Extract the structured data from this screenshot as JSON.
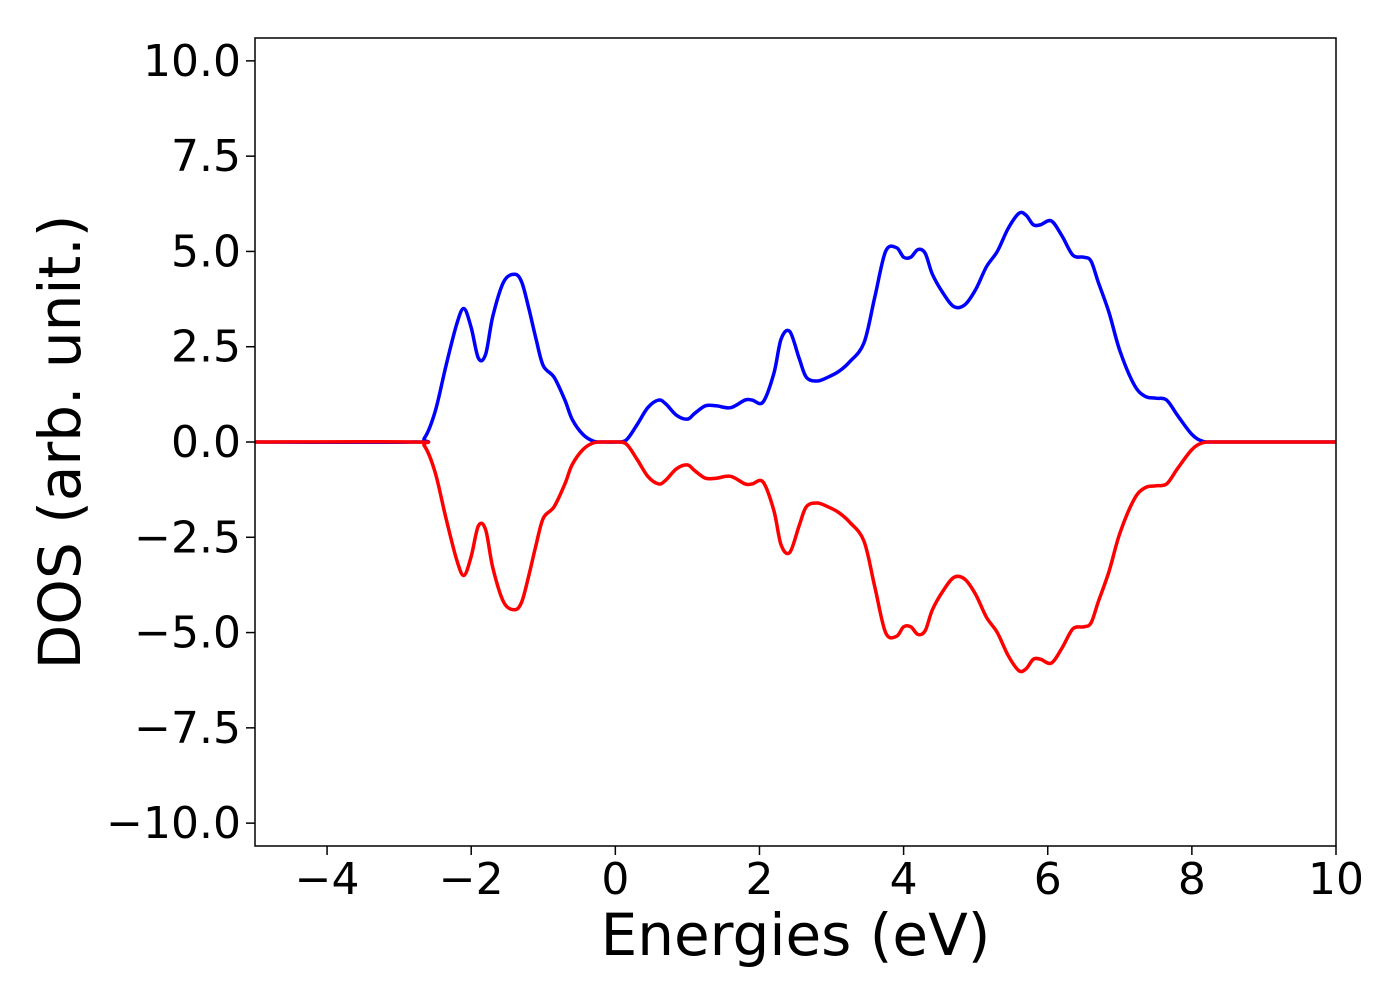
{
  "chart_data": {
    "type": "line",
    "title": "",
    "xlabel": "Energies (eV)",
    "ylabel": "DOS (arb. unit.)",
    "xlim": [
      -5,
      10
    ],
    "ylim": [
      -10.6,
      10.6
    ],
    "xticks": [
      -4,
      -2,
      0,
      2,
      4,
      6,
      8,
      10
    ],
    "xtick_labels": [
      "−4",
      "−2",
      "0",
      "2",
      "4",
      "6",
      "8",
      "10"
    ],
    "yticks": [
      10,
      7.5,
      5,
      2.5,
      0,
      -2.5,
      -5,
      -7.5,
      -10
    ],
    "ytick_labels": [
      "10.0",
      "7.5",
      "5.0",
      "2.5",
      "0.0",
      "−2.5",
      "−5.0",
      "−7.5",
      "−10.0"
    ],
    "grid": false,
    "legend": "none",
    "series": [
      {
        "color": "#0000ff",
        "x": [
          -5.0,
          -2.8,
          -2.65,
          -2.5,
          -2.35,
          -2.2,
          -2.1,
          -2.0,
          -1.9,
          -1.8,
          -1.7,
          -1.55,
          -1.4,
          -1.3,
          -1.2,
          -1.1,
          -1.0,
          -0.85,
          -0.7,
          -0.6,
          -0.45,
          -0.3,
          -0.15,
          0.0,
          0.15,
          0.3,
          0.45,
          0.6,
          0.7,
          0.85,
          1.0,
          1.1,
          1.25,
          1.4,
          1.6,
          1.8,
          1.9,
          2.05,
          2.2,
          2.3,
          2.42,
          2.55,
          2.65,
          2.8,
          2.95,
          3.1,
          3.25,
          3.45,
          3.6,
          3.75,
          3.9,
          4.0,
          4.1,
          4.2,
          4.3,
          4.4,
          4.55,
          4.7,
          4.85,
          5.0,
          5.15,
          5.3,
          5.45,
          5.6,
          5.7,
          5.8,
          5.9,
          6.05,
          6.2,
          6.35,
          6.5,
          6.6,
          6.7,
          6.85,
          7.0,
          7.2,
          7.35,
          7.5,
          7.65,
          7.8,
          8.0,
          8.15,
          8.3,
          8.5,
          10.0
        ],
        "y": [
          0.0,
          0.0,
          0.1,
          0.8,
          2.0,
          3.1,
          3.5,
          3.0,
          2.2,
          2.3,
          3.3,
          4.2,
          4.4,
          4.2,
          3.5,
          2.7,
          2.0,
          1.7,
          1.1,
          0.6,
          0.2,
          0.02,
          0.0,
          0.0,
          0.05,
          0.45,
          0.9,
          1.1,
          1.0,
          0.7,
          0.6,
          0.75,
          0.95,
          0.95,
          0.9,
          1.1,
          1.1,
          1.05,
          1.8,
          2.7,
          2.9,
          2.2,
          1.7,
          1.6,
          1.7,
          1.85,
          2.1,
          2.6,
          3.8,
          5.0,
          5.1,
          4.85,
          4.85,
          5.05,
          4.95,
          4.4,
          3.9,
          3.55,
          3.6,
          4.0,
          4.6,
          5.0,
          5.6,
          6.0,
          5.95,
          5.7,
          5.7,
          5.8,
          5.4,
          4.9,
          4.85,
          4.75,
          4.2,
          3.4,
          2.4,
          1.5,
          1.2,
          1.15,
          1.1,
          0.7,
          0.2,
          0.02,
          0.0,
          0.0,
          0.0
        ]
      },
      {
        "color": "#ff0000",
        "x": [
          -5.0,
          -2.8,
          -2.65,
          -2.5,
          -2.35,
          -2.2,
          -2.1,
          -2.0,
          -1.9,
          -1.8,
          -1.7,
          -1.55,
          -1.4,
          -1.3,
          -1.2,
          -1.1,
          -1.0,
          -0.85,
          -0.7,
          -0.6,
          -0.45,
          -0.3,
          -0.15,
          0.0,
          0.15,
          0.3,
          0.45,
          0.6,
          0.7,
          0.85,
          1.0,
          1.1,
          1.25,
          1.4,
          1.6,
          1.8,
          1.9,
          2.05,
          2.2,
          2.3,
          2.42,
          2.55,
          2.65,
          2.8,
          2.95,
          3.1,
          3.25,
          3.45,
          3.6,
          3.75,
          3.9,
          4.0,
          4.1,
          4.2,
          4.3,
          4.4,
          4.55,
          4.7,
          4.85,
          5.0,
          5.15,
          5.3,
          5.45,
          5.6,
          5.7,
          5.8,
          5.9,
          6.05,
          6.2,
          6.35,
          6.5,
          6.6,
          6.7,
          6.85,
          7.0,
          7.2,
          7.35,
          7.5,
          7.65,
          7.8,
          8.0,
          8.15,
          8.3,
          8.5,
          10.0
        ],
        "y": [
          0.0,
          0.0,
          -0.1,
          -0.8,
          -2.0,
          -3.1,
          -3.5,
          -3.0,
          -2.2,
          -2.3,
          -3.3,
          -4.2,
          -4.4,
          -4.2,
          -3.5,
          -2.7,
          -2.0,
          -1.7,
          -1.1,
          -0.6,
          -0.2,
          -0.02,
          0.0,
          0.0,
          -0.05,
          -0.45,
          -0.9,
          -1.1,
          -1.0,
          -0.7,
          -0.6,
          -0.75,
          -0.95,
          -0.95,
          -0.9,
          -1.1,
          -1.1,
          -1.05,
          -1.8,
          -2.7,
          -2.9,
          -2.2,
          -1.7,
          -1.6,
          -1.7,
          -1.85,
          -2.1,
          -2.6,
          -3.8,
          -5.0,
          -5.1,
          -4.85,
          -4.85,
          -5.05,
          -4.95,
          -4.4,
          -3.9,
          -3.55,
          -3.6,
          -4.0,
          -4.6,
          -5.0,
          -5.6,
          -6.0,
          -5.95,
          -5.7,
          -5.7,
          -5.8,
          -5.4,
          -4.9,
          -4.85,
          -4.75,
          -4.2,
          -3.4,
          -2.4,
          -1.5,
          -1.2,
          -1.15,
          -1.1,
          -0.7,
          -0.2,
          -0.02,
          0.0,
          0.0,
          0.0
        ]
      }
    ]
  }
}
